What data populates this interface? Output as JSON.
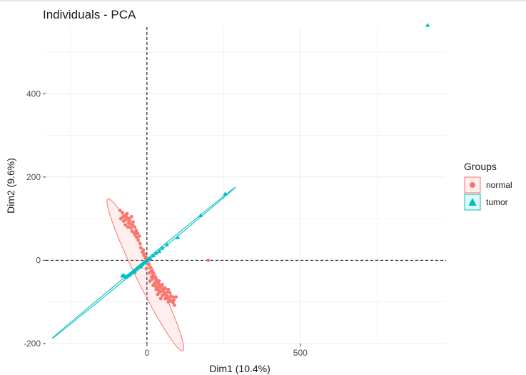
{
  "chart_data": {
    "type": "scatter",
    "title": "Individuals - PCA",
    "xlabel": "Dim1 (10.4%)",
    "ylabel": "Dim2 (9.6%)",
    "xlim": [
      -330,
      975
    ],
    "ylim": [
      -200,
      560
    ],
    "xticks": [
      0,
      500
    ],
    "xtick_labels": [
      "0",
      "500"
    ],
    "yticks": [
      -200,
      0,
      200,
      400
    ],
    "ytick_labels": [
      "-200",
      "0",
      "200",
      "400"
    ],
    "grid": true,
    "reference_lines": {
      "x": 0,
      "y": 0,
      "style": "dashed"
    },
    "legend": {
      "title": "Groups",
      "placement": "right",
      "entries": [
        {
          "label": "normal",
          "shape": "circle"
        },
        {
          "label": "tumor",
          "shape": "triangle"
        }
      ]
    },
    "colors": {
      "normal": "#F8766D",
      "tumor": "#00BFC4"
    },
    "series": [
      {
        "name": "normal",
        "marker": "circle",
        "points": [
          [
            -80,
            115
          ],
          [
            -72,
            108
          ],
          [
            -65,
            112
          ],
          [
            -58,
            100
          ],
          [
            -50,
            105
          ],
          [
            -85,
            100
          ],
          [
            -76,
            94
          ],
          [
            -68,
            98
          ],
          [
            -60,
            90
          ],
          [
            -55,
            88
          ],
          [
            -45,
            92
          ],
          [
            -40,
            80
          ],
          [
            -35,
            72
          ],
          [
            -30,
            65
          ],
          [
            -25,
            58
          ],
          [
            -88,
            120
          ],
          [
            -70,
            85
          ],
          [
            -62,
            80
          ],
          [
            -52,
            78
          ],
          [
            -48,
            70
          ],
          [
            -42,
            66
          ],
          [
            -38,
            60
          ],
          [
            -33,
            55
          ],
          [
            -28,
            48
          ],
          [
            -22,
            40
          ],
          [
            -78,
            104
          ],
          [
            -66,
            104
          ],
          [
            -56,
            96
          ],
          [
            -46,
            84
          ],
          [
            -36,
            68
          ],
          [
            -20,
            30
          ],
          [
            -15,
            20
          ],
          [
            -10,
            12
          ],
          [
            -5,
            5
          ],
          [
            0,
            -2
          ],
          [
            5,
            -10
          ],
          [
            10,
            -18
          ],
          [
            -12,
            25
          ],
          [
            -8,
            15
          ],
          [
            -3,
            8
          ],
          [
            15,
            -25
          ],
          [
            20,
            -30
          ],
          [
            25,
            -40
          ],
          [
            30,
            -45
          ],
          [
            35,
            -55
          ],
          [
            40,
            -60
          ],
          [
            45,
            -65
          ],
          [
            50,
            -70
          ],
          [
            55,
            -75
          ],
          [
            60,
            -80
          ],
          [
            65,
            -85
          ],
          [
            70,
            -90
          ],
          [
            75,
            -95
          ],
          [
            80,
            -98
          ],
          [
            85,
            -102
          ],
          [
            10,
            -50
          ],
          [
            20,
            -60
          ],
          [
            30,
            -70
          ],
          [
            40,
            -78
          ],
          [
            50,
            -85
          ],
          [
            60,
            -92
          ],
          [
            70,
            -100
          ],
          [
            15,
            -40
          ],
          [
            25,
            -55
          ],
          [
            35,
            -65
          ],
          [
            45,
            -75
          ],
          [
            55,
            -82
          ],
          [
            65,
            -90
          ],
          [
            75,
            -78
          ],
          [
            85,
            -88
          ],
          [
            20,
            -35
          ],
          [
            30,
            -50
          ],
          [
            40,
            -50
          ],
          [
            50,
            -58
          ],
          [
            60,
            -68
          ],
          [
            70,
            -70
          ],
          [
            35,
            -82
          ],
          [
            45,
            -92
          ],
          [
            95,
            -88
          ],
          [
            90,
            -108
          ],
          [
            -2,
            -20
          ],
          [
            8,
            -30
          ],
          [
            18,
            -45
          ],
          [
            28,
            -62
          ],
          [
            38,
            -72
          ],
          [
            48,
            -62
          ],
          [
            58,
            -66
          ],
          [
            68,
            -76
          ],
          [
            78,
            -86
          ],
          [
            88,
            -95
          ],
          [
            200,
            0
          ]
        ],
        "ellipse": {
          "center": [
            -5,
            -35
          ],
          "semi_major": 220,
          "semi_minor": 28,
          "angle_deg": -56
        }
      },
      {
        "name": "tumor",
        "marker": "triangle",
        "points": [
          [
            915,
            565
          ],
          [
            255,
            160
          ],
          [
            175,
            108
          ],
          [
            100,
            55
          ],
          [
            65,
            38
          ],
          [
            50,
            30
          ],
          [
            40,
            22
          ],
          [
            30,
            18
          ],
          [
            20,
            12
          ],
          [
            10,
            5
          ],
          [
            5,
            3
          ],
          [
            0,
            0
          ],
          [
            -5,
            -3
          ],
          [
            -10,
            -6
          ],
          [
            -15,
            -9
          ],
          [
            -20,
            -12
          ],
          [
            -25,
            -15
          ],
          [
            -30,
            -18
          ],
          [
            -35,
            -21
          ],
          [
            -40,
            -24
          ],
          [
            -45,
            -27
          ],
          [
            -50,
            -30
          ],
          [
            -55,
            -33
          ],
          [
            -60,
            -36
          ],
          [
            -65,
            -38
          ],
          [
            -70,
            -40
          ],
          [
            -75,
            -36
          ],
          [
            -80,
            -37
          ],
          [
            -40,
            -28
          ],
          [
            -20,
            -15
          ]
        ],
        "ellipse": {
          "center": [
            -10,
            -6
          ],
          "semi_major": 350,
          "semi_minor": 3,
          "angle_deg": 31.3
        }
      }
    ]
  }
}
